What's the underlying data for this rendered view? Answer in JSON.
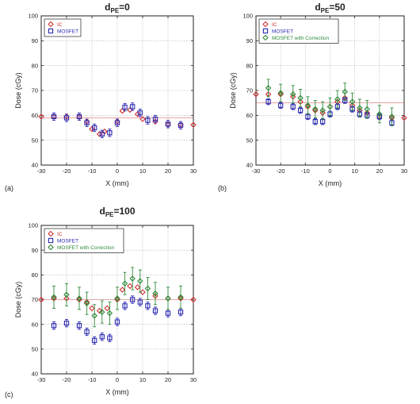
{
  "colors": {
    "ic": "#d03030",
    "mosfet": "#2a2ab0",
    "corrected": "#2f8a3a",
    "grid": "#b4b4b4",
    "axis": "#222222"
  },
  "chart_data": [
    {
      "type": "scatter",
      "panel_label": "(a)",
      "title": {
        "main": "d",
        "sub": "PE",
        "tail": "=0"
      },
      "xlabel": "X (mm)",
      "ylabel": "Dose (cGy)",
      "xlim": [
        -30,
        30
      ],
      "ylim": [
        40,
        100
      ],
      "xticks": [
        -30,
        -20,
        -10,
        0,
        10,
        20,
        30
      ],
      "yticks": [
        40,
        50,
        60,
        70,
        80,
        90,
        100
      ],
      "grid": true,
      "legend_position": "top-left",
      "series": [
        {
          "name": "IC",
          "key": "ic",
          "marker": "diamond",
          "line_y": 59,
          "points": [
            {
              "x": -30,
              "y": 59.5
            },
            {
              "x": -25,
              "y": 59.5
            },
            {
              "x": -20,
              "y": 59.5
            },
            {
              "x": -15,
              "y": 59.3
            },
            {
              "x": -12,
              "y": 57.5
            },
            {
              "x": -10,
              "y": 54.5
            },
            {
              "x": -7,
              "y": 52.5
            },
            {
              "x": -5,
              "y": 53.5
            },
            {
              "x": 0,
              "y": 57.5
            },
            {
              "x": 2,
              "y": 61.8
            },
            {
              "x": 5,
              "y": 62.2
            },
            {
              "x": 8,
              "y": 60.5
            },
            {
              "x": 10,
              "y": 58.5
            },
            {
              "x": 15,
              "y": 57.5
            },
            {
              "x": 20,
              "y": 56.3
            },
            {
              "x": 25,
              "y": 56.2
            },
            {
              "x": 30,
              "y": 56.2
            }
          ]
        },
        {
          "name": "MOSFET",
          "key": "mosfet",
          "marker": "square",
          "points": [
            {
              "x": -25,
              "y": 59.5,
              "err": 1.5
            },
            {
              "x": -20,
              "y": 59.0,
              "err": 1.5
            },
            {
              "x": -15,
              "y": 59.5,
              "err": 1.5
            },
            {
              "x": -12,
              "y": 57.0,
              "err": 1.5
            },
            {
              "x": -9,
              "y": 55.0,
              "err": 1.5
            },
            {
              "x": -6,
              "y": 52.5,
              "err": 1.5
            },
            {
              "x": -3,
              "y": 53.0,
              "err": 1.5
            },
            {
              "x": 0,
              "y": 57.0,
              "err": 1.5
            },
            {
              "x": 3,
              "y": 63.3,
              "err": 1.5
            },
            {
              "x": 6,
              "y": 63.5,
              "err": 1.5
            },
            {
              "x": 9,
              "y": 61.0,
              "err": 1.5
            },
            {
              "x": 12,
              "y": 58.0,
              "err": 1.5
            },
            {
              "x": 15,
              "y": 58.5,
              "err": 1.5
            },
            {
              "x": 20,
              "y": 56.5,
              "err": 1.5
            },
            {
              "x": 25,
              "y": 56.0,
              "err": 1.5
            }
          ]
        }
      ]
    },
    {
      "type": "scatter",
      "panel_label": "(b)",
      "title": {
        "main": "d",
        "sub": "PE",
        "tail": "=50"
      },
      "xlabel": "X (mm)",
      "ylabel": "Dose (cGy)",
      "xlim": [
        -30,
        30
      ],
      "ylim": [
        40,
        100
      ],
      "xticks": [
        -30,
        -20,
        -10,
        0,
        10,
        20,
        30
      ],
      "yticks": [
        40,
        50,
        60,
        70,
        80,
        90,
        100
      ],
      "grid": true,
      "legend_position": "top-left",
      "series": [
        {
          "name": "IC",
          "key": "ic",
          "marker": "diamond",
          "line_y": 65,
          "points": [
            {
              "x": -30,
              "y": 68.5
            },
            {
              "x": -25,
              "y": 68.5
            },
            {
              "x": -20,
              "y": 68.5
            },
            {
              "x": -15,
              "y": 67.5
            },
            {
              "x": -12,
              "y": 65.5
            },
            {
              "x": -9,
              "y": 63.5
            },
            {
              "x": -6,
              "y": 62.0
            },
            {
              "x": -3,
              "y": 61.0
            },
            {
              "x": 0,
              "y": 63.5
            },
            {
              "x": 3,
              "y": 65.5
            },
            {
              "x": 6,
              "y": 67.0
            },
            {
              "x": 9,
              "y": 64.0
            },
            {
              "x": 12,
              "y": 62.0
            },
            {
              "x": 15,
              "y": 61.0
            },
            {
              "x": 20,
              "y": 59.5
            },
            {
              "x": 25,
              "y": 59.0
            },
            {
              "x": 30,
              "y": 59.0
            }
          ]
        },
        {
          "name": "MOSFET",
          "key": "mosfet",
          "marker": "square",
          "points": [
            {
              "x": -25,
              "y": 65.5,
              "err": 1.2
            },
            {
              "x": -20,
              "y": 64.0,
              "err": 1.2
            },
            {
              "x": -15,
              "y": 63.5,
              "err": 1.2
            },
            {
              "x": -12,
              "y": 62.0,
              "err": 1.2
            },
            {
              "x": -9,
              "y": 59.5,
              "err": 1.2
            },
            {
              "x": -6,
              "y": 57.5,
              "err": 1.2
            },
            {
              "x": -3,
              "y": 57.5,
              "err": 1.2
            },
            {
              "x": 0,
              "y": 60.5,
              "err": 1.2
            },
            {
              "x": 3,
              "y": 63.5,
              "err": 1.2
            },
            {
              "x": 6,
              "y": 66.0,
              "err": 1.2
            },
            {
              "x": 9,
              "y": 62.5,
              "err": 1.2
            },
            {
              "x": 12,
              "y": 60.5,
              "err": 1.2
            },
            {
              "x": 15,
              "y": 60.0,
              "err": 1.2
            },
            {
              "x": 20,
              "y": 59.5,
              "err": 1.2
            },
            {
              "x": 25,
              "y": 57.0,
              "err": 1.2
            }
          ]
        },
        {
          "name": "MOSFET with Correction",
          "key": "corrected",
          "marker": "diamond",
          "points": [
            {
              "x": -25,
              "y": 71.0,
              "err": 3.5
            },
            {
              "x": -20,
              "y": 69.0,
              "err": 3.5
            },
            {
              "x": -15,
              "y": 68.5,
              "err": 3.5
            },
            {
              "x": -12,
              "y": 67.0,
              "err": 3.5
            },
            {
              "x": -9,
              "y": 64.0,
              "err": 3.5
            },
            {
              "x": -6,
              "y": 62.5,
              "err": 3.5
            },
            {
              "x": -3,
              "y": 62.0,
              "err": 3.5
            },
            {
              "x": 0,
              "y": 63.5,
              "err": 3.5
            },
            {
              "x": 3,
              "y": 66.5,
              "err": 3.5
            },
            {
              "x": 6,
              "y": 69.5,
              "err": 3.5
            },
            {
              "x": 9,
              "y": 65.5,
              "err": 3.5
            },
            {
              "x": 12,
              "y": 63.0,
              "err": 3.5
            },
            {
              "x": 15,
              "y": 62.5,
              "err": 3.5
            },
            {
              "x": 20,
              "y": 60.5,
              "err": 3.5
            },
            {
              "x": 25,
              "y": 59.5,
              "err": 3.5
            }
          ]
        }
      ]
    },
    {
      "type": "scatter",
      "panel_label": "(c)",
      "title": {
        "main": "d",
        "sub": "PE",
        "tail": "=100"
      },
      "xlabel": "X (mm)",
      "ylabel": "Dose (cGy)",
      "xlim": [
        -30,
        30
      ],
      "ylim": [
        40,
        100
      ],
      "xticks": [
        -30,
        -20,
        -10,
        0,
        10,
        20,
        30
      ],
      "yticks": [
        40,
        50,
        60,
        70,
        80,
        90,
        100
      ],
      "grid": true,
      "legend_position": "top-left",
      "series": [
        {
          "name": "IC",
          "key": "ic",
          "marker": "diamond",
          "line_y": 70,
          "points": [
            {
              "x": -30,
              "y": 70.0
            },
            {
              "x": -25,
              "y": 70.5
            },
            {
              "x": -20,
              "y": 70.5
            },
            {
              "x": -15,
              "y": 70.0
            },
            {
              "x": -12,
              "y": 69.0
            },
            {
              "x": -10,
              "y": 66.5
            },
            {
              "x": -7,
              "y": 65.5
            },
            {
              "x": -4,
              "y": 66.5
            },
            {
              "x": 0,
              "y": 70.0
            },
            {
              "x": 2,
              "y": 74.0
            },
            {
              "x": 5,
              "y": 75.5
            },
            {
              "x": 8,
              "y": 75.0
            },
            {
              "x": 10,
              "y": 73.0
            },
            {
              "x": 15,
              "y": 71.5
            },
            {
              "x": 20,
              "y": 70.5
            },
            {
              "x": 25,
              "y": 70.5
            },
            {
              "x": 30,
              "y": 70.0
            }
          ]
        },
        {
          "name": "MOSFET",
          "key": "mosfet",
          "marker": "square",
          "points": [
            {
              "x": -25,
              "y": 59.5,
              "err": 1.5
            },
            {
              "x": -20,
              "y": 60.5,
              "err": 1.5
            },
            {
              "x": -15,
              "y": 59.5,
              "err": 1.5
            },
            {
              "x": -12,
              "y": 57.0,
              "err": 1.5
            },
            {
              "x": -9,
              "y": 53.5,
              "err": 1.5
            },
            {
              "x": -6,
              "y": 55.0,
              "err": 1.5
            },
            {
              "x": -3,
              "y": 54.5,
              "err": 1.5
            },
            {
              "x": 0,
              "y": 61.0,
              "err": 1.5
            },
            {
              "x": 3,
              "y": 67.5,
              "err": 1.5
            },
            {
              "x": 6,
              "y": 70.0,
              "err": 1.5
            },
            {
              "x": 9,
              "y": 69.0,
              "err": 1.5
            },
            {
              "x": 12,
              "y": 67.5,
              "err": 1.5
            },
            {
              "x": 15,
              "y": 65.5,
              "err": 1.5
            },
            {
              "x": 20,
              "y": 64.5,
              "err": 1.5
            },
            {
              "x": 25,
              "y": 65.0,
              "err": 1.5
            }
          ]
        },
        {
          "name": "MOSFET with Correction",
          "key": "corrected",
          "marker": "diamond",
          "points": [
            {
              "x": -25,
              "y": 71.0,
              "err": 4.5
            },
            {
              "x": -20,
              "y": 72.0,
              "err": 4.5
            },
            {
              "x": -15,
              "y": 70.5,
              "err": 4.5
            },
            {
              "x": -12,
              "y": 68.5,
              "err": 4.5
            },
            {
              "x": -9,
              "y": 63.5,
              "err": 4.5
            },
            {
              "x": -6,
              "y": 65.0,
              "err": 4.5
            },
            {
              "x": -3,
              "y": 64.5,
              "err": 4.5
            },
            {
              "x": 0,
              "y": 70.5,
              "err": 4.5
            },
            {
              "x": 3,
              "y": 76.5,
              "err": 4.5
            },
            {
              "x": 6,
              "y": 78.5,
              "err": 4.5
            },
            {
              "x": 9,
              "y": 77.5,
              "err": 4.5
            },
            {
              "x": 12,
              "y": 74.5,
              "err": 4.5
            },
            {
              "x": 15,
              "y": 72.5,
              "err": 4.5
            },
            {
              "x": 20,
              "y": 70.5,
              "err": 4.5
            },
            {
              "x": 25,
              "y": 71.0,
              "err": 4.5
            }
          ]
        }
      ]
    }
  ]
}
